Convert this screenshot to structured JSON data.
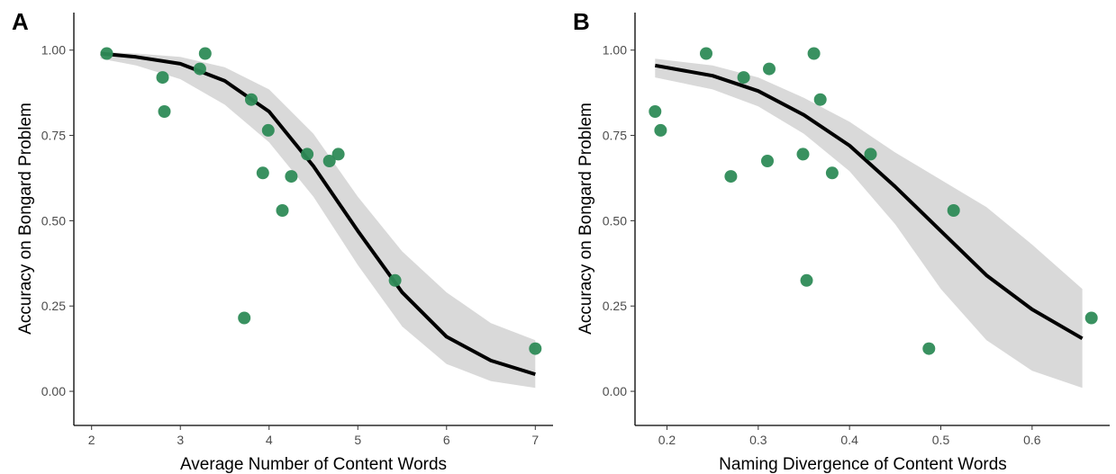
{
  "colors": {
    "point": "#2e8b57",
    "fit_line": "#000000",
    "ribbon": "#d9d9d9"
  },
  "chart_data": [
    {
      "type": "scatter",
      "panel": "A",
      "xlabel": "Average Number of Content Words",
      "ylabel": "Accuracy on Bongard Problem",
      "xlim": [
        1.8,
        7.2
      ],
      "ylim": [
        -0.1,
        1.11
      ],
      "xticks": [
        "2",
        "3",
        "4",
        "5",
        "6",
        "7"
      ],
      "yticks": [
        "0.00",
        "0.25",
        "0.50",
        "0.75",
        "1.00"
      ],
      "points": [
        {
          "x": 2.17,
          "y": 0.99
        },
        {
          "x": 2.8,
          "y": 0.92
        },
        {
          "x": 2.82,
          "y": 0.82
        },
        {
          "x": 3.22,
          "y": 0.945
        },
        {
          "x": 3.28,
          "y": 0.99
        },
        {
          "x": 3.72,
          "y": 0.215
        },
        {
          "x": 3.8,
          "y": 0.855
        },
        {
          "x": 3.93,
          "y": 0.64
        },
        {
          "x": 3.99,
          "y": 0.765
        },
        {
          "x": 4.15,
          "y": 0.53
        },
        {
          "x": 4.25,
          "y": 0.63
        },
        {
          "x": 4.43,
          "y": 0.695
        },
        {
          "x": 4.68,
          "y": 0.675
        },
        {
          "x": 4.78,
          "y": 0.695
        },
        {
          "x": 5.42,
          "y": 0.325
        },
        {
          "x": 7.0,
          "y": 0.125
        }
      ],
      "fit": {
        "x": [
          2.1,
          2.5,
          3.0,
          3.5,
          4.0,
          4.5,
          5.0,
          5.5,
          6.0,
          6.5,
          7.0
        ],
        "y": [
          0.99,
          0.98,
          0.96,
          0.91,
          0.82,
          0.66,
          0.47,
          0.29,
          0.16,
          0.09,
          0.05
        ],
        "lower": [
          0.975,
          0.955,
          0.915,
          0.84,
          0.73,
          0.57,
          0.37,
          0.19,
          0.08,
          0.03,
          0.01
        ],
        "upper": [
          0.995,
          0.99,
          0.98,
          0.95,
          0.885,
          0.755,
          0.57,
          0.41,
          0.29,
          0.2,
          0.15
        ]
      }
    },
    {
      "type": "scatter",
      "panel": "B",
      "xlabel": "Naming Divergence of Content Words",
      "ylabel": "Accuracy on Bongard Problem",
      "xlim": [
        0.165,
        0.685
      ],
      "ylim": [
        -0.1,
        1.11
      ],
      "xticks": [
        "0.2",
        "0.3",
        "0.4",
        "0.5",
        "0.6"
      ],
      "yticks": [
        "0.00",
        "0.25",
        "0.50",
        "0.75",
        "1.00"
      ],
      "points": [
        {
          "x": 0.187,
          "y": 0.82
        },
        {
          "x": 0.193,
          "y": 0.765
        },
        {
          "x": 0.243,
          "y": 0.99
        },
        {
          "x": 0.27,
          "y": 0.63
        },
        {
          "x": 0.284,
          "y": 0.92
        },
        {
          "x": 0.31,
          "y": 0.675
        },
        {
          "x": 0.312,
          "y": 0.945
        },
        {
          "x": 0.349,
          "y": 0.695
        },
        {
          "x": 0.353,
          "y": 0.325
        },
        {
          "x": 0.361,
          "y": 0.99
        },
        {
          "x": 0.368,
          "y": 0.855
        },
        {
          "x": 0.381,
          "y": 0.64
        },
        {
          "x": 0.423,
          "y": 0.695
        },
        {
          "x": 0.487,
          "y": 0.125
        },
        {
          "x": 0.514,
          "y": 0.53
        },
        {
          "x": 0.665,
          "y": 0.215
        }
      ],
      "fit": {
        "x": [
          0.187,
          0.25,
          0.3,
          0.35,
          0.4,
          0.45,
          0.5,
          0.55,
          0.6,
          0.655
        ],
        "y": [
          0.955,
          0.925,
          0.88,
          0.81,
          0.72,
          0.6,
          0.47,
          0.34,
          0.24,
          0.155
        ],
        "lower": [
          0.92,
          0.885,
          0.835,
          0.755,
          0.645,
          0.49,
          0.3,
          0.15,
          0.06,
          0.01
        ],
        "upper": [
          0.975,
          0.955,
          0.92,
          0.86,
          0.79,
          0.7,
          0.62,
          0.54,
          0.43,
          0.3
        ]
      }
    }
  ]
}
